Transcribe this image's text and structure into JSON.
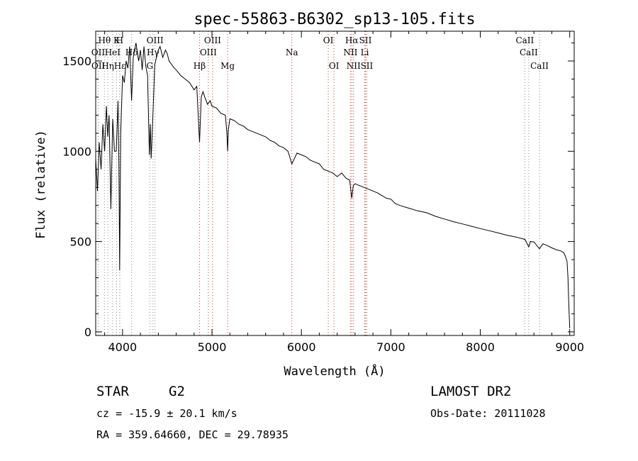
{
  "chart_data": {
    "type": "line",
    "title": "spec-55863-B6302_sp13-105.fits",
    "xlabel": "Wavelength (Å)",
    "ylabel": "Flux (relative)",
    "xlim": [
      3700,
      9050
    ],
    "ylim": [
      -20,
      1665
    ],
    "xticks": [
      4000,
      5000,
      6000,
      7000,
      8000,
      9000
    ],
    "yticks": [
      0,
      500,
      1000,
      1500
    ],
    "series": [
      {
        "name": "spectrum",
        "x": [
          3700,
          3720,
          3740,
          3760,
          3780,
          3800,
          3820,
          3835,
          3850,
          3870,
          3890,
          3910,
          3930,
          3950,
          3960,
          3968,
          3980,
          4000,
          4020,
          4040,
          4060,
          4080,
          4101,
          4120,
          4150,
          4180,
          4200,
          4220,
          4240,
          4260,
          4280,
          4300,
          4310,
          4320,
          4340,
          4360,
          4380,
          4400,
          4420,
          4450,
          4480,
          4500,
          4520,
          4550,
          4580,
          4600,
          4650,
          4700,
          4750,
          4800,
          4830,
          4861,
          4880,
          4900,
          4920,
          4950,
          4980,
          5000,
          5050,
          5100,
          5150,
          5167,
          5175,
          5183,
          5200,
          5250,
          5300,
          5350,
          5400,
          5450,
          5500,
          5550,
          5600,
          5650,
          5700,
          5750,
          5800,
          5850,
          5893,
          5950,
          6000,
          6050,
          6100,
          6150,
          6200,
          6250,
          6300,
          6350,
          6400,
          6450,
          6500,
          6540,
          6563,
          6580,
          6600,
          6650,
          6700,
          6750,
          6800,
          6850,
          6900,
          6950,
          7000,
          7050,
          7100,
          7200,
          7300,
          7400,
          7500,
          7600,
          7700,
          7800,
          7900,
          8000,
          8100,
          8200,
          8300,
          8400,
          8500,
          8542,
          8560,
          8600,
          8662,
          8700,
          8750,
          8800,
          8850,
          8900,
          8930,
          8950,
          8970,
          8980,
          8990,
          9000
        ],
        "y": [
          960,
          780,
          1050,
          900,
          1150,
          1000,
          1250,
          1080,
          1200,
          680,
          1180,
          1000,
          1000,
          1280,
          900,
          340,
          1100,
          1420,
          1380,
          1500,
          1460,
          1580,
          1280,
          1520,
          1600,
          1500,
          1560,
          1450,
          1580,
          1470,
          1420,
          980,
          1150,
          960,
          1200,
          1480,
          1520,
          1560,
          1580,
          1520,
          1560,
          1540,
          1500,
          1480,
          1460,
          1450,
          1420,
          1400,
          1380,
          1340,
          1360,
          1050,
          1300,
          1330,
          1300,
          1260,
          1280,
          1250,
          1240,
          1210,
          1200,
          1100,
          1000,
          1120,
          1180,
          1170,
          1150,
          1140,
          1120,
          1110,
          1100,
          1090,
          1080,
          1060,
          1050,
          1030,
          1020,
          1000,
          930,
          990,
          980,
          970,
          950,
          940,
          930,
          900,
          890,
          880,
          860,
          880,
          850,
          840,
          740,
          810,
          820,
          810,
          800,
          790,
          780,
          770,
          755,
          740,
          735,
          710,
          700,
          685,
          670,
          660,
          640,
          625,
          610,
          598,
          585,
          572,
          560,
          548,
          535,
          525,
          512,
          470,
          500,
          498,
          460,
          488,
          478,
          465,
          455,
          448,
          440,
          420,
          390,
          300,
          150,
          20
        ]
      }
    ],
    "spectral_lines": [
      {
        "label": "Hθ",
        "wavelength": 3798,
        "color": "#000000",
        "row": 0
      },
      {
        "label": "K",
        "wavelength": 3934,
        "color": "#000000",
        "row": 0
      },
      {
        "label": "H",
        "wavelength": 3968,
        "color": "#000000",
        "row": 0
      },
      {
        "label": "OII",
        "wavelength": 3727,
        "color": "#000000",
        "row": 1
      },
      {
        "label": "HeI",
        "wavelength": 3889,
        "color": "#000000",
        "row": 1
      },
      {
        "label": "OIII",
        "wavelength": 4363,
        "color": "#000000",
        "row": 0
      },
      {
        "label": "Hδ",
        "wavelength": 4101,
        "color": "#000000",
        "row": 1
      },
      {
        "label": "OII",
        "wavelength": 3729,
        "color": "#000000",
        "row": 2
      },
      {
        "label": "Hη",
        "wavelength": 3835,
        "color": "#000000",
        "row": 2
      },
      {
        "label": "Hε",
        "wavelength": 3970,
        "color": "#000000",
        "row": 2
      },
      {
        "label": "Hγ",
        "wavelength": 4340,
        "color": "#000000",
        "row": 1
      },
      {
        "label": "G",
        "wavelength": 4305,
        "color": "#000000",
        "row": 2
      },
      {
        "label": "Hβ",
        "wavelength": 4861,
        "color": "#000000",
        "row": 2
      },
      {
        "label": "OIII",
        "wavelength": 4959,
        "color": "#000000",
        "row": 1
      },
      {
        "label": "OIII",
        "wavelength": 5007,
        "color": "#000000",
        "row": 0
      },
      {
        "label": "Mg",
        "wavelength": 5175,
        "color": "#000000",
        "row": 2
      },
      {
        "label": "Na",
        "wavelength": 5893,
        "color": "#000000",
        "row": 1
      },
      {
        "label": "OI",
        "wavelength": 6300,
        "color": "#000000",
        "row": 0
      },
      {
        "label": "OI",
        "wavelength": 6364,
        "color": "#000000",
        "row": 2
      },
      {
        "label": "Hα",
        "wavelength": 6563,
        "color": "#000000",
        "row": 0
      },
      {
        "label": "NII",
        "wavelength": 6548,
        "color": "#000000",
        "row": 1
      },
      {
        "label": "NII",
        "wavelength": 6583,
        "color": "#000000",
        "row": 2
      },
      {
        "label": "SII",
        "wavelength": 6716,
        "color": "#000000",
        "row": 0
      },
      {
        "label": "Li",
        "wavelength": 6708,
        "color": "#000000",
        "row": 1
      },
      {
        "label": "SII",
        "wavelength": 6731,
        "color": "#000000",
        "row": 2
      },
      {
        "label": "CaII",
        "wavelength": 8498,
        "color": "#000000",
        "row": 0
      },
      {
        "label": "CaII",
        "wavelength": 8542,
        "color": "#000000",
        "row": 1
      },
      {
        "label": "CaII",
        "wavelength": 8662,
        "color": "#000000",
        "row": 2
      }
    ],
    "line_colors": {
      "absorption": "#888888",
      "emission": "#cc3333"
    }
  },
  "info": {
    "object_class": "STAR",
    "subclass": "G2",
    "survey": "LAMOST DR2",
    "redshift": "cz = -15.9 ± 20.1 km/s",
    "obs_date": "Obs-Date: 20111028",
    "coords": "RA = 359.64660, DEC =  29.78935"
  }
}
